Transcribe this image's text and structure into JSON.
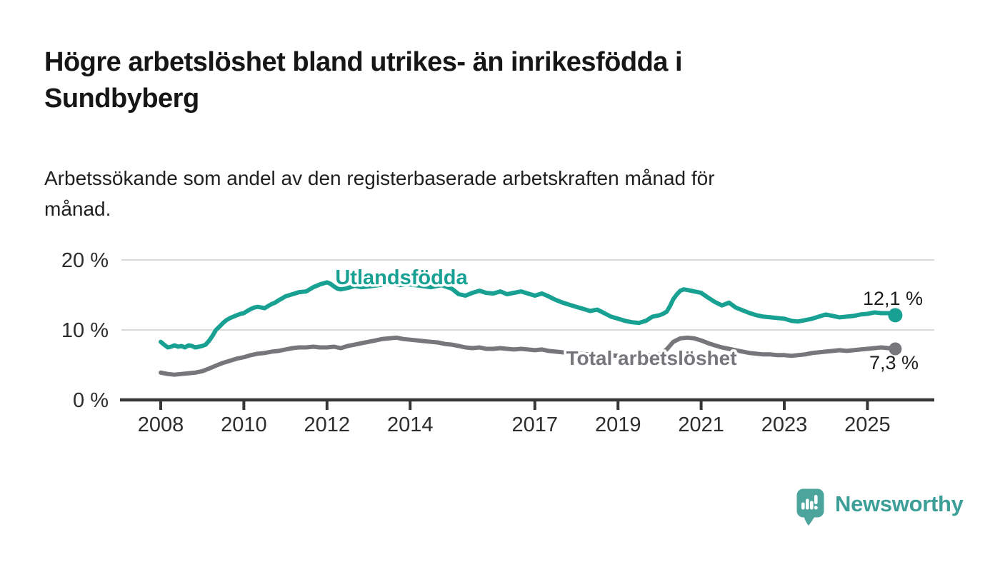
{
  "header": {
    "title_lines": [
      "Högre arbetslöshet bland utrikes- än inrikesfödda i",
      "Sundbyberg"
    ],
    "subtitle_lines": [
      "Arbetssökande som andel av den registerbaserade arbetskraften månad för",
      "månad."
    ]
  },
  "branding": {
    "name": "Newsworthy",
    "logo_icon": "speech-bubble-bar-chart-icon",
    "logo_bubble_color": "#4ba59d",
    "logo_text_color": "#3d9f98"
  },
  "chart_data": {
    "type": "line",
    "title": "Högre arbetslöshet bland utrikes- än inrikesfödda i Sundbyberg",
    "subtitle": "Arbetssökande som andel av den registerbaserade arbetskraften månad för månad.",
    "unit": "%",
    "grid": "horizontal",
    "legend_position": "inline-labels",
    "xlim": [
      2008,
      2025.9
    ],
    "ylim": [
      0,
      20
    ],
    "x_ticks": [
      {
        "year": 2008,
        "label": "2008"
      },
      {
        "year": 2010,
        "label": "2010"
      },
      {
        "year": 2012,
        "label": "2012"
      },
      {
        "year": 2014,
        "label": "2014"
      },
      {
        "year": 2017,
        "label": "2017"
      },
      {
        "year": 2019,
        "label": "2019"
      },
      {
        "year": 2021,
        "label": "2021"
      },
      {
        "year": 2023,
        "label": "2023"
      },
      {
        "year": 2025,
        "label": "2025"
      }
    ],
    "y_ticks": [
      {
        "value": 0,
        "label": "0 %"
      },
      {
        "value": 10,
        "label": "10 %"
      },
      {
        "value": 20,
        "label": "20 %"
      }
    ],
    "series": [
      {
        "id": "utlandsfodda",
        "label": "Utlandsfödda",
        "color": "#18a093",
        "end_label": "12,1 %",
        "end_value": 12.1,
        "points": [
          [
            2008.0,
            8.3
          ],
          [
            2008.08,
            7.9
          ],
          [
            2008.17,
            7.5
          ],
          [
            2008.25,
            7.6
          ],
          [
            2008.33,
            7.8
          ],
          [
            2008.42,
            7.6
          ],
          [
            2008.5,
            7.7
          ],
          [
            2008.58,
            7.5
          ],
          [
            2008.67,
            7.8
          ],
          [
            2008.75,
            7.7
          ],
          [
            2008.83,
            7.5
          ],
          [
            2008.92,
            7.6
          ],
          [
            2009.0,
            7.7
          ],
          [
            2009.08,
            7.9
          ],
          [
            2009.17,
            8.5
          ],
          [
            2009.25,
            9.2
          ],
          [
            2009.33,
            10.0
          ],
          [
            2009.42,
            10.5
          ],
          [
            2009.5,
            11.0
          ],
          [
            2009.58,
            11.4
          ],
          [
            2009.67,
            11.7
          ],
          [
            2009.75,
            11.9
          ],
          [
            2009.83,
            12.1
          ],
          [
            2009.92,
            12.3
          ],
          [
            2010.0,
            12.4
          ],
          [
            2010.08,
            12.7
          ],
          [
            2010.17,
            13.0
          ],
          [
            2010.25,
            13.2
          ],
          [
            2010.33,
            13.3
          ],
          [
            2010.42,
            13.2
          ],
          [
            2010.5,
            13.1
          ],
          [
            2010.58,
            13.4
          ],
          [
            2010.67,
            13.7
          ],
          [
            2010.75,
            13.9
          ],
          [
            2010.83,
            14.2
          ],
          [
            2010.92,
            14.5
          ],
          [
            2011.0,
            14.8
          ],
          [
            2011.17,
            15.1
          ],
          [
            2011.33,
            15.4
          ],
          [
            2011.5,
            15.5
          ],
          [
            2011.67,
            16.1
          ],
          [
            2011.83,
            16.5
          ],
          [
            2012.0,
            16.8
          ],
          [
            2012.08,
            16.6
          ],
          [
            2012.17,
            16.2
          ],
          [
            2012.25,
            15.9
          ],
          [
            2012.33,
            15.8
          ],
          [
            2012.5,
            16.0
          ],
          [
            2012.67,
            16.3
          ],
          [
            2012.83,
            16.1
          ],
          [
            2013.0,
            16.2
          ],
          [
            2013.25,
            16.4
          ],
          [
            2013.5,
            16.6
          ],
          [
            2013.75,
            16.4
          ],
          [
            2014.0,
            16.5
          ],
          [
            2014.25,
            16.3
          ],
          [
            2014.5,
            16.1
          ],
          [
            2014.75,
            16.4
          ],
          [
            2015.0,
            15.9
          ],
          [
            2015.17,
            15.1
          ],
          [
            2015.33,
            14.9
          ],
          [
            2015.5,
            15.3
          ],
          [
            2015.67,
            15.6
          ],
          [
            2015.83,
            15.3
          ],
          [
            2016.0,
            15.2
          ],
          [
            2016.17,
            15.5
          ],
          [
            2016.33,
            15.1
          ],
          [
            2016.5,
            15.3
          ],
          [
            2016.67,
            15.5
          ],
          [
            2016.83,
            15.2
          ],
          [
            2017.0,
            14.9
          ],
          [
            2017.17,
            15.2
          ],
          [
            2017.33,
            14.8
          ],
          [
            2017.5,
            14.3
          ],
          [
            2017.67,
            13.9
          ],
          [
            2017.83,
            13.6
          ],
          [
            2018.0,
            13.3
          ],
          [
            2018.17,
            13.0
          ],
          [
            2018.33,
            12.7
          ],
          [
            2018.5,
            12.9
          ],
          [
            2018.67,
            12.4
          ],
          [
            2018.83,
            11.9
          ],
          [
            2019.0,
            11.6
          ],
          [
            2019.17,
            11.3
          ],
          [
            2019.33,
            11.1
          ],
          [
            2019.5,
            11.0
          ],
          [
            2019.67,
            11.3
          ],
          [
            2019.83,
            11.9
          ],
          [
            2020.0,
            12.1
          ],
          [
            2020.08,
            12.3
          ],
          [
            2020.17,
            12.6
          ],
          [
            2020.25,
            13.4
          ],
          [
            2020.33,
            14.4
          ],
          [
            2020.42,
            15.1
          ],
          [
            2020.5,
            15.6
          ],
          [
            2020.58,
            15.8
          ],
          [
            2020.67,
            15.7
          ],
          [
            2020.75,
            15.6
          ],
          [
            2020.83,
            15.5
          ],
          [
            2020.92,
            15.4
          ],
          [
            2021.0,
            15.3
          ],
          [
            2021.17,
            14.6
          ],
          [
            2021.33,
            14.0
          ],
          [
            2021.5,
            13.5
          ],
          [
            2021.67,
            13.9
          ],
          [
            2021.83,
            13.2
          ],
          [
            2022.0,
            12.8
          ],
          [
            2022.17,
            12.4
          ],
          [
            2022.33,
            12.1
          ],
          [
            2022.5,
            11.9
          ],
          [
            2022.67,
            11.8
          ],
          [
            2022.83,
            11.7
          ],
          [
            2023.0,
            11.6
          ],
          [
            2023.17,
            11.3
          ],
          [
            2023.33,
            11.2
          ],
          [
            2023.5,
            11.4
          ],
          [
            2023.67,
            11.6
          ],
          [
            2023.83,
            11.9
          ],
          [
            2024.0,
            12.2
          ],
          [
            2024.17,
            12.0
          ],
          [
            2024.33,
            11.8
          ],
          [
            2024.5,
            11.9
          ],
          [
            2024.67,
            12.0
          ],
          [
            2024.83,
            12.2
          ],
          [
            2025.0,
            12.3
          ],
          [
            2025.17,
            12.5
          ],
          [
            2025.33,
            12.4
          ],
          [
            2025.5,
            12.4
          ],
          [
            2025.67,
            12.1
          ]
        ]
      },
      {
        "id": "total-arbetsloshet",
        "label": "Total arbetslöshet",
        "color": "#76767b",
        "end_label": "7,3 %",
        "end_value": 7.3,
        "points": [
          [
            2008.0,
            3.9
          ],
          [
            2008.17,
            3.7
          ],
          [
            2008.33,
            3.6
          ],
          [
            2008.5,
            3.7
          ],
          [
            2008.67,
            3.8
          ],
          [
            2008.83,
            3.9
          ],
          [
            2009.0,
            4.1
          ],
          [
            2009.17,
            4.5
          ],
          [
            2009.33,
            4.9
          ],
          [
            2009.5,
            5.3
          ],
          [
            2009.67,
            5.6
          ],
          [
            2009.83,
            5.9
          ],
          [
            2010.0,
            6.1
          ],
          [
            2010.17,
            6.4
          ],
          [
            2010.33,
            6.6
          ],
          [
            2010.5,
            6.7
          ],
          [
            2010.67,
            6.9
          ],
          [
            2010.83,
            7.0
          ],
          [
            2011.0,
            7.2
          ],
          [
            2011.17,
            7.4
          ],
          [
            2011.33,
            7.5
          ],
          [
            2011.5,
            7.5
          ],
          [
            2011.67,
            7.6
          ],
          [
            2011.83,
            7.5
          ],
          [
            2012.0,
            7.5
          ],
          [
            2012.17,
            7.6
          ],
          [
            2012.33,
            7.4
          ],
          [
            2012.5,
            7.7
          ],
          [
            2012.67,
            7.9
          ],
          [
            2012.83,
            8.1
          ],
          [
            2013.0,
            8.3
          ],
          [
            2013.17,
            8.5
          ],
          [
            2013.33,
            8.7
          ],
          [
            2013.5,
            8.8
          ],
          [
            2013.67,
            8.9
          ],
          [
            2013.83,
            8.7
          ],
          [
            2014.0,
            8.6
          ],
          [
            2014.17,
            8.5
          ],
          [
            2014.33,
            8.4
          ],
          [
            2014.5,
            8.3
          ],
          [
            2014.67,
            8.2
          ],
          [
            2014.83,
            8.0
          ],
          [
            2015.0,
            7.9
          ],
          [
            2015.17,
            7.7
          ],
          [
            2015.33,
            7.5
          ],
          [
            2015.5,
            7.4
          ],
          [
            2015.67,
            7.5
          ],
          [
            2015.83,
            7.3
          ],
          [
            2016.0,
            7.3
          ],
          [
            2016.17,
            7.4
          ],
          [
            2016.33,
            7.3
          ],
          [
            2016.5,
            7.2
          ],
          [
            2016.67,
            7.3
          ],
          [
            2016.83,
            7.2
          ],
          [
            2017.0,
            7.1
          ],
          [
            2017.17,
            7.2
          ],
          [
            2017.33,
            7.0
          ],
          [
            2017.5,
            6.9
          ],
          [
            2017.67,
            6.8
          ],
          [
            2017.83,
            6.7
          ],
          [
            2018.0,
            6.6
          ],
          [
            2018.33,
            6.5
          ],
          [
            2018.67,
            6.4
          ],
          [
            2019.0,
            6.3
          ],
          [
            2019.33,
            6.2
          ],
          [
            2019.67,
            6.3
          ],
          [
            2020.0,
            6.5
          ],
          [
            2020.17,
            7.2
          ],
          [
            2020.33,
            8.3
          ],
          [
            2020.5,
            8.8
          ],
          [
            2020.67,
            8.9
          ],
          [
            2020.83,
            8.8
          ],
          [
            2021.0,
            8.5
          ],
          [
            2021.17,
            8.1
          ],
          [
            2021.33,
            7.8
          ],
          [
            2021.5,
            7.5
          ],
          [
            2021.67,
            7.3
          ],
          [
            2021.83,
            7.1
          ],
          [
            2022.0,
            6.9
          ],
          [
            2022.17,
            6.7
          ],
          [
            2022.33,
            6.6
          ],
          [
            2022.5,
            6.5
          ],
          [
            2022.67,
            6.5
          ],
          [
            2022.83,
            6.4
          ],
          [
            2023.0,
            6.4
          ],
          [
            2023.17,
            6.3
          ],
          [
            2023.33,
            6.4
          ],
          [
            2023.5,
            6.5
          ],
          [
            2023.67,
            6.7
          ],
          [
            2023.83,
            6.8
          ],
          [
            2024.0,
            6.9
          ],
          [
            2024.17,
            7.0
          ],
          [
            2024.33,
            7.1
          ],
          [
            2024.5,
            7.0
          ],
          [
            2024.67,
            7.1
          ],
          [
            2024.83,
            7.2
          ],
          [
            2025.0,
            7.3
          ],
          [
            2025.17,
            7.4
          ],
          [
            2025.33,
            7.5
          ],
          [
            2025.5,
            7.4
          ],
          [
            2025.67,
            7.3
          ]
        ]
      }
    ]
  }
}
